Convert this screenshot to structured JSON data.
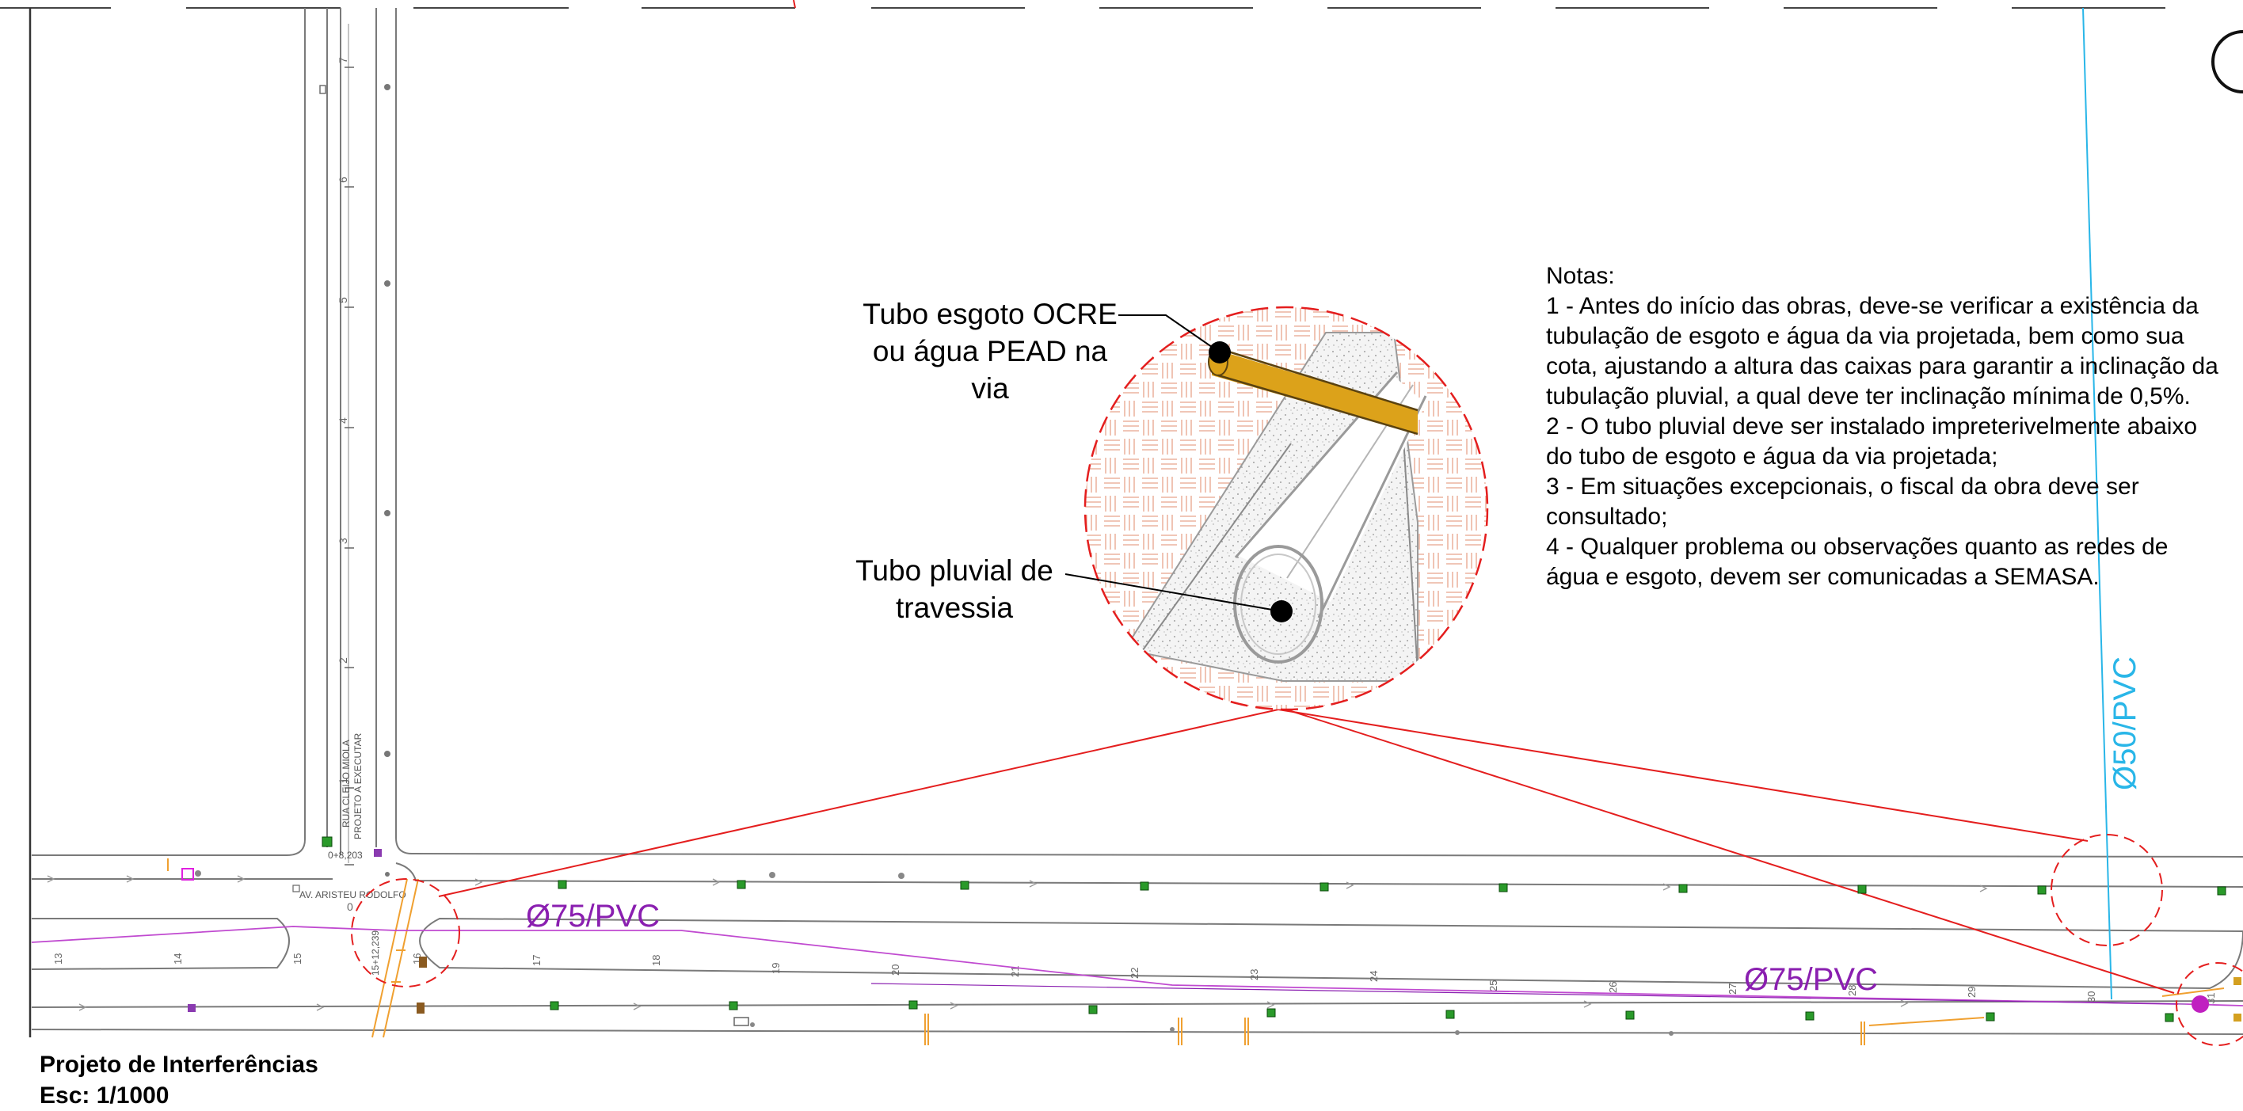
{
  "notes": {
    "heading": "Notas:",
    "lines": [
      "1 - Antes do início das obras, deve-se verificar a existência da",
      "tubulação de esgoto e água da via projetada, bem como sua",
      "cota, ajustando a altura das caixas para garantir a inclinação da",
      "tubulação pluvial, a qual deve ter inclinação mínima de 0,5%.",
      "2 - O tubo pluvial deve ser instalado impreterivelmente abaixo",
      "do tubo de esgoto e água da via projetada;",
      "3 - Em situações excepcionais, o fiscal da obra deve ser",
      "consultado;",
      "4 - Qualquer problema ou observações quanto as redes de",
      "água e esgoto, devem ser comunicadas a SEMASA."
    ]
  },
  "detail": {
    "label_top": [
      "Tubo esgoto OCRE",
      "ou água PEAD na",
      "via"
    ],
    "label_bottom": [
      "Tubo pluvial de",
      "travessia"
    ]
  },
  "pipes": {
    "pvc75_a": "Ø75/PVC",
    "pvc75_b": "Ø75/PVC",
    "pvc50": "Ø50/PVC"
  },
  "streets": {
    "street_a": "RUA CLEIJO MIOLA",
    "street_a_sub": "PROJETO A EXECUTAR",
    "street_b": "AV. ARISTEU RODOLFO",
    "stake_start": "0+8,203",
    "stake_crossing": "15+12,239"
  },
  "vertical_stakes": [
    "7",
    "6",
    "5",
    "4",
    "3",
    "2",
    "1",
    "0"
  ],
  "horizontal_stakes": [
    "13",
    "14",
    "15",
    "16",
    "17",
    "18",
    "19",
    "20",
    "21",
    "22",
    "23",
    "24",
    "25",
    "26",
    "27",
    "28",
    "29",
    "30",
    "31"
  ],
  "title": {
    "name": "Projeto de Interferências",
    "scale": "Esc: 1/1000"
  },
  "colors": {
    "red": "#e41e1e",
    "purple": "#8a1fb0",
    "cyan": "#29b6e8",
    "yellow_pipe": "#dca21a",
    "orange": "#f0a030",
    "green": "#2a9a2a",
    "gray_line": "#7a7a7a"
  }
}
